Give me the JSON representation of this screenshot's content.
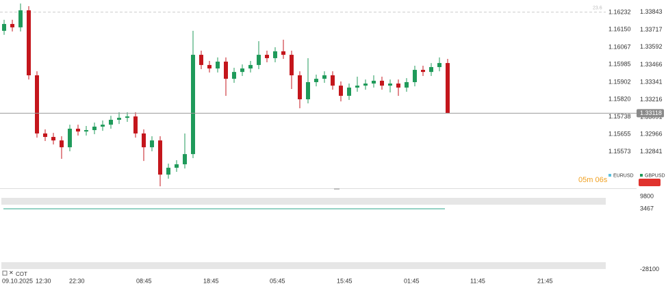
{
  "chart_data": {
    "type": "candlestick",
    "up_color": "#1f9a5a",
    "down_color": "#c4161c",
    "ylim": [
      1.3258,
      1.3393
    ],
    "yticks": [
      1.33843,
      1.33717,
      1.33592,
      1.33466,
      1.33341,
      1.33216,
      1.33091,
      1.32966,
      1.32841
    ],
    "y2lim": [
      1.154,
      1.1629
    ],
    "y2ticks": [
      1.16232,
      {
        "value": 1.1615,
        "label": "1.16150"
      },
      1.16067,
      1.15985,
      1.15902,
      {
        "value": 1.1582,
        "label": "1.15820"
      },
      1.15738,
      1.15655,
      1.15573
    ],
    "series": [
      {
        "name": "EURUSD",
        "color": "#5bc0de",
        "axis": "y2"
      },
      {
        "name": "GBPUSD",
        "color": "#1f9a5a"
      }
    ],
    "fib": {
      "ratio": 23.6,
      "price": 1.33843
    },
    "countdown": "05m 06s",
    "x_labels": [
      "09.10.2025",
      "12:30",
      "22:30",
      "08:45",
      "18:45",
      "05:45",
      "15:45",
      "01:45",
      "11:45",
      "21:45"
    ],
    "candles": [
      [
        1.33709,
        1.33788,
        1.3368,
        1.33758
      ],
      [
        1.33758,
        1.33788,
        1.33704,
        1.33734
      ],
      [
        1.33734,
        1.33905,
        1.33704,
        1.33856
      ],
      [
        1.33856,
        1.33886,
        1.3336,
        1.3339
      ],
      [
        1.3339,
        1.33419,
        1.32943,
        1.32973
      ],
      [
        1.32973,
        1.33002,
        1.32919,
        1.32948
      ],
      [
        1.32948,
        1.32977,
        1.32894,
        1.32923
      ],
      [
        1.32923,
        1.32953,
        1.32791,
        1.32874
      ],
      [
        1.32874,
        1.33036,
        1.32845,
        1.33007
      ],
      [
        1.33007,
        1.33036,
        1.32958,
        1.32987
      ],
      [
        1.32987,
        1.33027,
        1.32958,
        1.32997
      ],
      [
        1.32997,
        1.33051,
        1.32968,
        1.33022
      ],
      [
        1.33022,
        1.33066,
        1.32992,
        1.33036
      ],
      [
        1.33036,
        1.331,
        1.33007,
        1.33071
      ],
      [
        1.33071,
        1.33125,
        1.33041,
        1.33085
      ],
      [
        1.33085,
        1.33125,
        1.33056,
        1.33095
      ],
      [
        1.33095,
        1.33125,
        1.32943,
        1.32973
      ],
      [
        1.32973,
        1.33002,
        1.32776,
        1.32874
      ],
      [
        1.32874,
        1.32953,
        1.32845,
        1.32923
      ],
      [
        1.32923,
        1.32953,
        1.32594,
        1.32678
      ],
      [
        1.32678,
        1.32757,
        1.32649,
        1.32727
      ],
      [
        1.32727,
        1.32781,
        1.32698,
        1.32752
      ],
      [
        1.32752,
        1.32973,
        1.32722,
        1.32825
      ],
      [
        1.32825,
        1.33709,
        1.32796,
        1.33537
      ],
      [
        1.33537,
        1.33567,
        1.33434,
        1.33464
      ],
      [
        1.33464,
        1.33493,
        1.3341,
        1.33439
      ],
      [
        1.33439,
        1.33518,
        1.3341,
        1.33488
      ],
      [
        1.33488,
        1.33518,
        1.33243,
        1.33365
      ],
      [
        1.33365,
        1.33444,
        1.33336,
        1.33414
      ],
      [
        1.33414,
        1.33468,
        1.33385,
        1.33439
      ],
      [
        1.33439,
        1.33493,
        1.3341,
        1.33464
      ],
      [
        1.33464,
        1.33635,
        1.33434,
        1.33537
      ],
      [
        1.33537,
        1.33567,
        1.33483,
        1.33513
      ],
      [
        1.33513,
        1.33591,
        1.33483,
        1.33562
      ],
      [
        1.33562,
        1.33645,
        1.33508,
        1.33537
      ],
      [
        1.33537,
        1.33567,
        1.33292,
        1.3339
      ],
      [
        1.3339,
        1.33419,
        1.33154,
        1.33218
      ],
      [
        1.33218,
        1.33513,
        1.33189,
        1.33341
      ],
      [
        1.33341,
        1.33395,
        1.33311,
        1.33365
      ],
      [
        1.33365,
        1.33419,
        1.33336,
        1.3339
      ],
      [
        1.3339,
        1.33419,
        1.33287,
        1.33316
      ],
      [
        1.33316,
        1.33346,
        1.33203,
        1.33243
      ],
      [
        1.33243,
        1.33331,
        1.33213,
        1.33302
      ],
      [
        1.33302,
        1.3338,
        1.33272,
        1.33316
      ],
      [
        1.33316,
        1.3336,
        1.33287,
        1.33331
      ],
      [
        1.33331,
        1.3339,
        1.33302,
        1.33351
      ],
      [
        1.33351,
        1.3338,
        1.33287,
        1.33316
      ],
      [
        1.33316,
        1.3336,
        1.33267,
        1.33331
      ],
      [
        1.33331,
        1.3336,
        1.33243,
        1.33302
      ],
      [
        1.33302,
        1.3337,
        1.33272,
        1.33341
      ],
      [
        1.33341,
        1.33459,
        1.33311,
        1.33429
      ],
      [
        1.33429,
        1.33459,
        1.33385,
        1.33414
      ],
      [
        1.33414,
        1.33478,
        1.33385,
        1.33449
      ],
      [
        1.33449,
        1.33518,
        1.33419,
        1.33478
      ],
      [
        1.33478,
        1.33508,
        1.33118,
        1.33118
      ]
    ],
    "indicator": {
      "name": "COT",
      "value": 3467,
      "color": "#2aa58a",
      "ylim": [
        -28200,
        9850
      ],
      "yticks": [
        9800,
        3467,
        -28100
      ]
    }
  }
}
